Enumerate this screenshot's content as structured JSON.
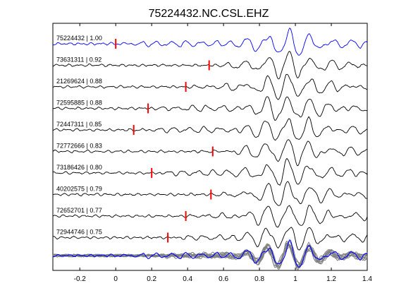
{
  "chart_data": {
    "type": "line",
    "title": "75224432.NC.CSL.EHZ",
    "xlabel": "",
    "ylabel": "",
    "xlim": [
      -0.35,
      1.4
    ],
    "xticks": [
      -0.2,
      0,
      0.2,
      0.4,
      0.6,
      0.8,
      1,
      1.2,
      1.4
    ],
    "xtick_labels": [
      "-0.2",
      "0",
      "0.2",
      "0.4",
      "0.6",
      "0.8",
      "1",
      "1.2",
      "1.4"
    ],
    "grid": false,
    "legend": "none",
    "colors": {
      "reference_trace": "#0000ff",
      "match_trace": "#000000",
      "stack_trace": "#808080",
      "pick_marker": "#ff0000"
    },
    "rows": [
      {
        "label": "75224432 | 1.00",
        "id": "75224432",
        "cc": 1.0,
        "pick": 0.0,
        "reference": true
      },
      {
        "label": "73631311 | 0.92",
        "id": "73631311",
        "cc": 0.92,
        "pick": 0.52
      },
      {
        "label": "21269624 | 0.88",
        "id": "21269624",
        "cc": 0.88,
        "pick": 0.39
      },
      {
        "label": "72595885 | 0.88",
        "id": "72595885",
        "cc": 0.88,
        "pick": 0.18
      },
      {
        "label": "72447311 | 0.85",
        "id": "72447311",
        "cc": 0.85,
        "pick": 0.1
      },
      {
        "label": "72772666 | 0.83",
        "id": "72772666",
        "cc": 0.83,
        "pick": 0.54
      },
      {
        "label": "73186426 | 0.80",
        "id": "73186426",
        "cc": 0.8,
        "pick": 0.2
      },
      {
        "label": "40202575 | 0.79",
        "id": "40202575",
        "cc": 0.79,
        "pick": 0.53
      },
      {
        "label": "72652701 | 0.77",
        "id": "72652701",
        "cc": 0.77,
        "pick": 0.39
      },
      {
        "label": "72944746 | 0.75",
        "id": "72944746",
        "cc": 0.75,
        "pick": 0.29
      }
    ],
    "stack": {
      "reference_included": true
    }
  }
}
